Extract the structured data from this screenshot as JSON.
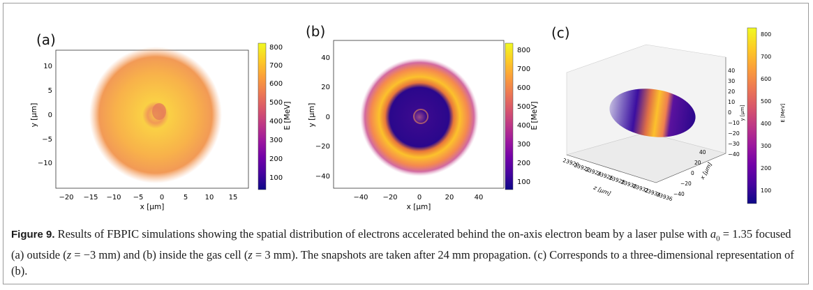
{
  "figure": {
    "panels": [
      {
        "label": "(a)",
        "xlabel": "x [μm]",
        "ylabel": "y [μm]",
        "cbar_label": "E [MeV]",
        "xticks": [
          "−20",
          "−15",
          "−10",
          "−5",
          "0",
          "5",
          "10",
          "15"
        ],
        "yticks": [
          "10",
          "5",
          "0",
          "−5",
          "−10"
        ],
        "cbar_ticks": [
          "800",
          "700",
          "600",
          "500",
          "400",
          "300",
          "200",
          "100"
        ]
      },
      {
        "label": "(b)",
        "xlabel": "x [μm]",
        "ylabel": "y [μm]",
        "cbar_label": "E [MeV]",
        "xticks": [
          "−40",
          "−20",
          "0",
          "20",
          "40"
        ],
        "yticks": [
          "40",
          "20",
          "0",
          "−20",
          "−40"
        ],
        "cbar_ticks": [
          "800",
          "700",
          "600",
          "500",
          "400",
          "300",
          "200",
          "100"
        ]
      },
      {
        "label": "(c)",
        "xlabel": "z [μm]",
        "ylabel": "x [μm]",
        "zlabel": "y [μm]",
        "cbar_label": "E [MeV]",
        "xticks": [
          "23920",
          "23922",
          "23924",
          "23926",
          "23928",
          "23930",
          "23932",
          "23934",
          "23936"
        ],
        "yticks": [
          "40",
          "20",
          "0",
          "−20",
          "−40"
        ],
        "zticks": [
          "40",
          "30",
          "20",
          "10",
          "0",
          "−10",
          "−20",
          "−30",
          "−40"
        ],
        "cbar_ticks": [
          "800",
          "700",
          "600",
          "500",
          "400",
          "300",
          "200",
          "100"
        ]
      }
    ],
    "colormap": [
      "#0d0887",
      "#46039f",
      "#7201a8",
      "#9c179e",
      "#bd3786",
      "#d8576b",
      "#ed7953",
      "#fb9f3a",
      "#fdca26",
      "#f0f921"
    ],
    "caption": {
      "label": "Figure 9.",
      "text_1": "Results of FBPIC simulations showing the spatial distribution of electrons accelerated behind the on-axis electron beam by a laser pulse with",
      "a0_symbol": "a",
      "a0_sub": "0",
      "a0_value": "= 1.35",
      "text_2": "focused (a) outside (",
      "z_outside": "z",
      "z_outside_value": "= −3 mm) and (b) inside the gas cell (",
      "z_inside": "z",
      "z_inside_value": "= 3 mm). The snapshots are taken after 24 mm propagation. (c) Corresponds to a three-dimensional representation of (b)."
    }
  }
}
